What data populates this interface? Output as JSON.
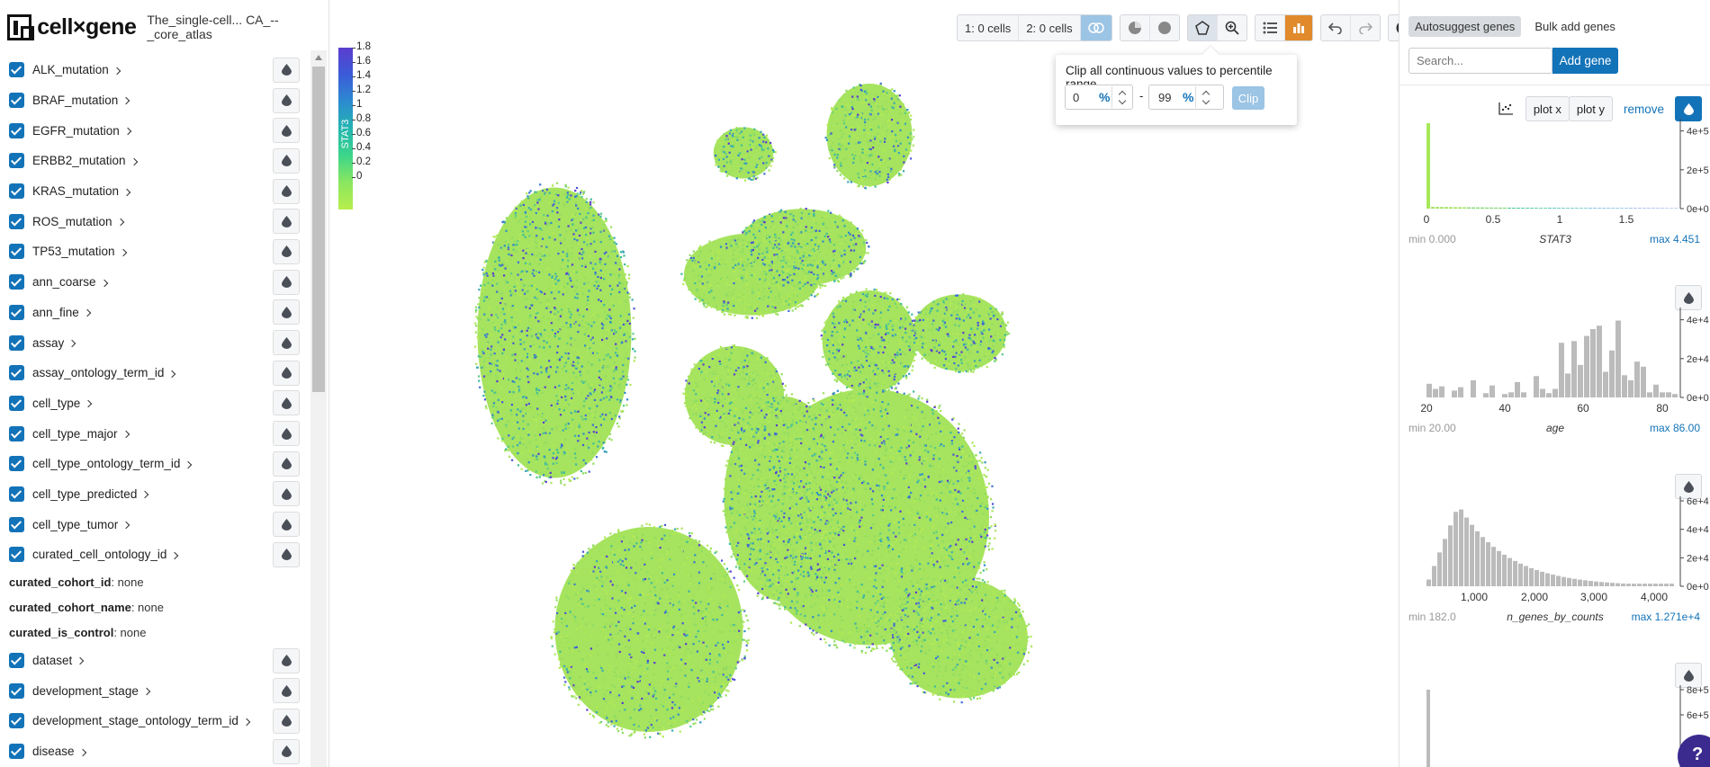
{
  "app": {
    "brand": "cell×gene",
    "dataset_title": "The_single-cell... CA_--_core_atlas"
  },
  "sidebar": {
    "categories_top": [
      {
        "label": "ALK_mutation"
      },
      {
        "label": "BRAF_mutation"
      },
      {
        "label": "EGFR_mutation"
      },
      {
        "label": "ERBB2_mutation"
      },
      {
        "label": "KRAS_mutation"
      },
      {
        "label": "ROS_mutation"
      },
      {
        "label": "TP53_mutation"
      },
      {
        "label": "ann_coarse"
      },
      {
        "label": "ann_fine"
      },
      {
        "label": "assay"
      },
      {
        "label": "assay_ontology_term_id"
      },
      {
        "label": "cell_type"
      },
      {
        "label": "cell_type_major"
      },
      {
        "label": "cell_type_ontology_term_id"
      },
      {
        "label": "cell_type_predicted"
      },
      {
        "label": "cell_type_tumor"
      },
      {
        "label": "curated_cell_ontology_id"
      }
    ],
    "none_fields": [
      {
        "name": "curated_cohort_id",
        "value": ": none"
      },
      {
        "name": "curated_cohort_name",
        "value": ": none"
      },
      {
        "name": "curated_is_control",
        "value": ": none"
      }
    ],
    "categories_bottom": [
      {
        "label": "dataset"
      },
      {
        "label": "development_stage"
      },
      {
        "label": "development_stage_ontology_term_id"
      },
      {
        "label": "disease"
      }
    ]
  },
  "colorbar": {
    "label": "STAT3",
    "ticks": [
      "1.8",
      "1.6",
      "1.4",
      "1.2",
      "1",
      "0.8",
      "0.6",
      "0.4",
      "0.2",
      "0"
    ]
  },
  "toolbar": {
    "set1": "1: 0 cells",
    "set2": "2: 0 cells"
  },
  "clip": {
    "title": "Clip all continuous values to percentile range",
    "min": "0",
    "max": "99",
    "pct": "%",
    "dash": "-",
    "button": "Clip"
  },
  "right": {
    "tab_autosuggest": "Autosuggest genes",
    "tab_bulk": "Bulk add genes",
    "search_placeholder": "Search...",
    "add_gene": "Add gene",
    "plot_x": "plot x",
    "plot_y": "plot y",
    "remove": "remove",
    "help": "?"
  },
  "histograms": [
    {
      "name": "STAT3",
      "min": "min 0.000",
      "max": "max 4.451",
      "xticks": [
        "0",
        "0.5",
        "1",
        "1.5"
      ],
      "yticks": [
        "4e+5",
        "2e+5",
        "0e+0"
      ]
    },
    {
      "name": "age",
      "min": "min 20.00",
      "max": "max 86.00",
      "xticks": [
        "20",
        "40",
        "60",
        "80"
      ],
      "yticks": [
        "4e+4",
        "2e+4",
        "0e+0"
      ]
    },
    {
      "name": "n_genes_by_counts",
      "min": "min 182.0",
      "max": "max 1.271e+4",
      "xticks": [
        "1,000",
        "2,000",
        "3,000",
        "4,000"
      ],
      "yticks": [
        "6e+4",
        "4e+4",
        "2e+4",
        "0e+0"
      ]
    },
    {
      "name": "",
      "min": "",
      "max": "",
      "xticks": [],
      "yticks": [
        "8e+5",
        "6e+5"
      ]
    }
  ],
  "colors": {
    "accent": "#1373b8",
    "orange": "#e08a2c"
  }
}
